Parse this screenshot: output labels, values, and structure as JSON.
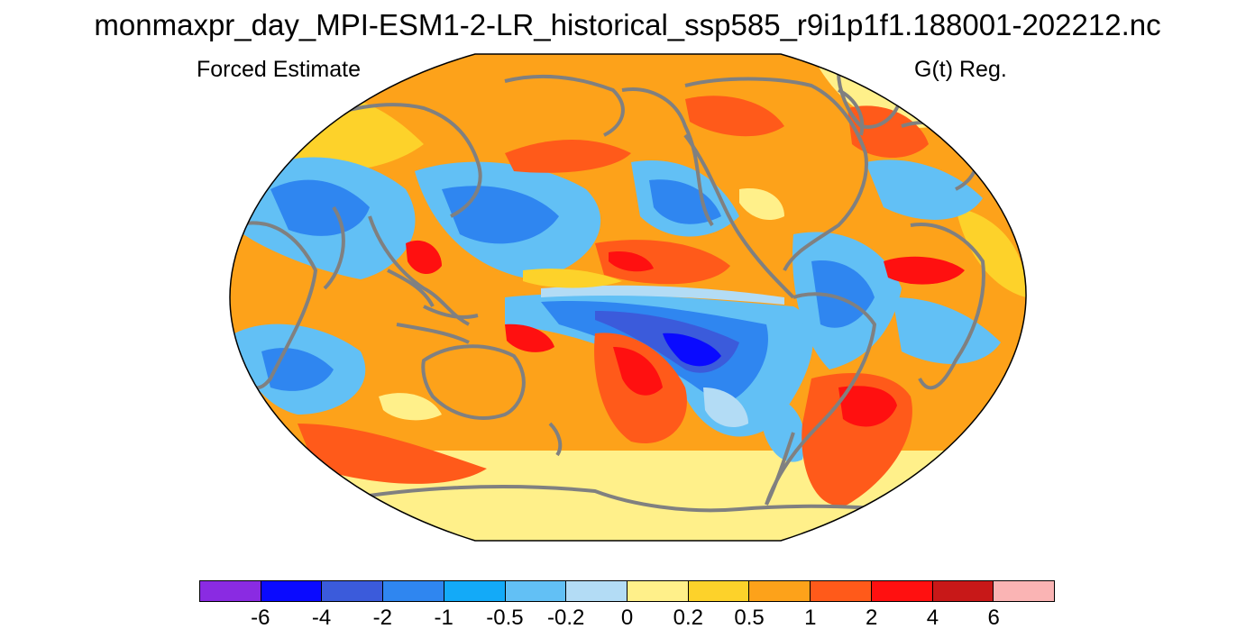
{
  "title": "monmaxpr_day_MPI-ESM1-2-LR_historical_ssp585_r9i1p1f1.188001-202212.nc",
  "subtitle_left": "Forced Estimate",
  "subtitle_right": "G(t) Reg.",
  "map": {
    "projection": "robinson",
    "background_color": "#ffffff",
    "coastline_color": "#808080",
    "outline_color": "#000000"
  },
  "colorbar": {
    "colors": [
      "#8a2be2",
      "#0a0aff",
      "#3b5bdb",
      "#2f86f0",
      "#13aaf8",
      "#62c0f5",
      "#b3dcf5",
      "#fff08a",
      "#fdd22a",
      "#fda21a",
      "#ff5a1a",
      "#ff1010",
      "#c81818",
      "#fab4b4"
    ],
    "tick_labels": [
      "-6",
      "-4",
      "-2",
      "-1",
      "-0.5",
      "-0.2",
      "0",
      "0.2",
      "0.5",
      "1",
      "2",
      "4",
      "6"
    ]
  }
}
